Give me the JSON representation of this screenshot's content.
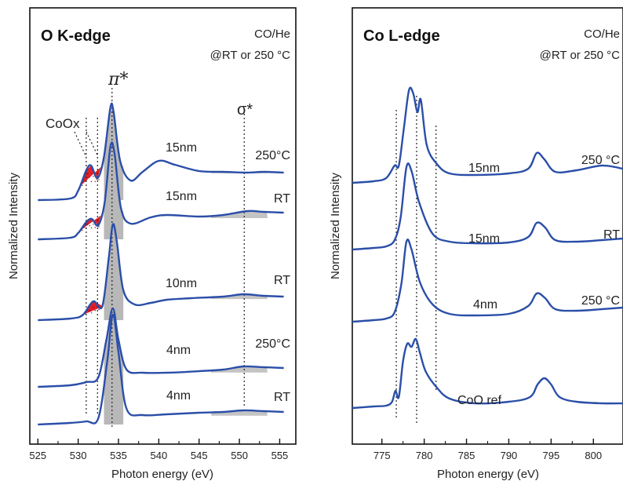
{
  "chart_data": [
    {
      "type": "line",
      "title": "O K-edge",
      "condition": [
        "CO/He",
        "@RT or 250 °C"
      ],
      "xlabel": "Photon energy (eV)",
      "ylabel": "Normalized Intensity",
      "xlim": [
        524,
        557
      ],
      "ticks": [
        525,
        530,
        535,
        540,
        545,
        550,
        555
      ],
      "peak_labels": {
        "pi": "π*",
        "sigma": "σ*",
        "coox": "CoOx"
      },
      "guides": [
        531,
        532.4,
        534.2,
        550.6
      ],
      "series": [
        {
          "size": "15nm",
          "temp": "250°C",
          "offset": 255,
          "scale": 1.0,
          "coo": 0.9,
          "bg": 0.4,
          "pts": [
            [
              525,
              0
            ],
            [
              529,
              2
            ],
            [
              530,
              12
            ],
            [
              531,
              38
            ],
            [
              531.6,
              44
            ],
            [
              532.4,
              28
            ],
            [
              533.2,
              55
            ],
            [
              534,
              118
            ],
            [
              534.4,
              112
            ],
            [
              535.2,
              50
            ],
            [
              536.5,
              25
            ],
            [
              538,
              36
            ],
            [
              540,
              50
            ],
            [
              542,
              45
            ],
            [
              545,
              37
            ],
            [
              548,
              36
            ],
            [
              551,
              35
            ],
            [
              553,
              36
            ],
            [
              555.5,
              35
            ]
          ]
        },
        {
          "size": "15nm",
          "temp": "RT",
          "offset": 305,
          "scale": 1.0,
          "coo": 0.6,
          "bg": 0.5,
          "pts": [
            [
              525,
              0
            ],
            [
              529,
              2
            ],
            [
              530,
              8
            ],
            [
              531,
              22
            ],
            [
              531.7,
              26
            ],
            [
              532.5,
              18
            ],
            [
              533.3,
              48
            ],
            [
              534,
              118
            ],
            [
              534.5,
              110
            ],
            [
              535.3,
              40
            ],
            [
              536.5,
              20
            ],
            [
              539,
              28
            ],
            [
              541,
              31
            ],
            [
              545,
              29
            ],
            [
              548,
              31
            ],
            [
              551,
              36
            ],
            [
              553,
              35
            ],
            [
              555.5,
              34
            ]
          ]
        },
        {
          "size": "10nm",
          "temp": "RT",
          "offset": 408,
          "scale": 1.0,
          "coo": 0.45,
          "bg": 0.4,
          "pts": [
            [
              525,
              0
            ],
            [
              529,
              2
            ],
            [
              530.5,
              6
            ],
            [
              531.5,
              20
            ],
            [
              532,
              24
            ],
            [
              533,
              18
            ],
            [
              533.8,
              80
            ],
            [
              534.3,
              122
            ],
            [
              534.8,
              100
            ],
            [
              535.6,
              38
            ],
            [
              537,
              20
            ],
            [
              539,
              22
            ],
            [
              541,
              26
            ],
            [
              544,
              28
            ],
            [
              548,
              30
            ],
            [
              550.5,
              33
            ],
            [
              553,
              31
            ],
            [
              555.5,
              30
            ]
          ]
        },
        {
          "size": "4nm",
          "temp": "250°C",
          "offset": 493,
          "scale": 1.0,
          "coo": 0.0,
          "bg": 0.45,
          "pts": [
            [
              525,
              0
            ],
            [
              529,
              2
            ],
            [
              531,
              6
            ],
            [
              532.5,
              12
            ],
            [
              533.5,
              60
            ],
            [
              534.3,
              100
            ],
            [
              535,
              60
            ],
            [
              536,
              22
            ],
            [
              538,
              18
            ],
            [
              541,
              18
            ],
            [
              545,
              20
            ],
            [
              548,
              22
            ],
            [
              550.5,
              26
            ],
            [
              553,
              25
            ],
            [
              555.5,
              24
            ]
          ]
        },
        {
          "size": "4nm",
          "temp": "RT",
          "offset": 541,
          "scale": 1.0,
          "coo": 0.0,
          "bg": 0.7,
          "pts": [
            [
              525,
              0
            ],
            [
              529,
              2
            ],
            [
              531,
              4
            ],
            [
              532.5,
              8
            ],
            [
              533.6,
              80
            ],
            [
              534.3,
              140
            ],
            [
              535,
              92
            ],
            [
              536,
              20
            ],
            [
              538,
              12
            ],
            [
              541,
              13
            ],
            [
              545,
              15
            ],
            [
              548,
              16
            ],
            [
              550.5,
              18
            ],
            [
              553,
              17
            ],
            [
              555.5,
              16
            ]
          ]
        }
      ]
    },
    {
      "type": "line",
      "title": "Co L-edge",
      "condition": [
        "CO/He",
        "@RT or 250 °C"
      ],
      "xlabel": "Photon energy (eV)",
      "ylabel": "Normalized Intensity",
      "xlim": [
        771.5,
        803.5
      ],
      "ticks": [
        775,
        780,
        785,
        790,
        795,
        800
      ],
      "guides": [
        776.7,
        779.1,
        781.4
      ],
      "series": [
        {
          "size": "15nm",
          "temp": "250 °C",
          "offset": 233,
          "pts": [
            [
              771.5,
              0
            ],
            [
              774,
              2
            ],
            [
              775.5,
              6
            ],
            [
              776.5,
              22
            ],
            [
              777,
              22
            ],
            [
              777.6,
              70
            ],
            [
              778.2,
              118
            ],
            [
              778.7,
              114
            ],
            [
              779.2,
              90
            ],
            [
              779.6,
              106
            ],
            [
              780.3,
              48
            ],
            [
              781.5,
              24
            ],
            [
              783,
              12
            ],
            [
              786,
              10
            ],
            [
              790,
              12
            ],
            [
              792.3,
              18
            ],
            [
              793.3,
              38
            ],
            [
              794.2,
              30
            ],
            [
              795.5,
              14
            ],
            [
              798,
              16
            ],
            [
              801,
              22
            ],
            [
              803.5,
              18
            ]
          ]
        },
        {
          "size": "15nm",
          "temp": "RT",
          "offset": 318,
          "pts": [
            [
              771.5,
              0
            ],
            [
              774,
              2
            ],
            [
              775.5,
              4
            ],
            [
              776.5,
              12
            ],
            [
              777.2,
              40
            ],
            [
              777.9,
              105
            ],
            [
              778.5,
              100
            ],
            [
              779.4,
              60
            ],
            [
              781,
              20
            ],
            [
              783,
              10
            ],
            [
              786,
              8
            ],
            [
              790,
              9
            ],
            [
              792.3,
              16
            ],
            [
              793.3,
              34
            ],
            [
              794.3,
              28
            ],
            [
              795.5,
              12
            ],
            [
              798,
              10
            ],
            [
              801,
              12
            ],
            [
              803.5,
              14
            ]
          ]
        },
        {
          "size": "4nm",
          "temp": "250 °C",
          "offset": 410,
          "pts": [
            [
              771.5,
              0
            ],
            [
              774,
              2
            ],
            [
              775.5,
              4
            ],
            [
              776.5,
              12
            ],
            [
              777.3,
              48
            ],
            [
              777.9,
              102
            ],
            [
              778.5,
              92
            ],
            [
              779.5,
              50
            ],
            [
              781,
              22
            ],
            [
              783,
              10
            ],
            [
              786,
              8
            ],
            [
              790,
              10
            ],
            [
              792.3,
              20
            ],
            [
              793.3,
              36
            ],
            [
              794.3,
              30
            ],
            [
              795.5,
              16
            ],
            [
              798,
              14
            ],
            [
              801,
              16
            ],
            [
              803.5,
              18
            ]
          ]
        },
        {
          "size": "CoO ref",
          "temp": "",
          "offset": 520,
          "pts": [
            [
              771.5,
              0
            ],
            [
              774,
              2
            ],
            [
              775.5,
              3
            ],
            [
              776.2,
              8
            ],
            [
              776.6,
              22
            ],
            [
              777,
              14
            ],
            [
              777.5,
              60
            ],
            [
              778,
              82
            ],
            [
              778.5,
              78
            ],
            [
              779,
              88
            ],
            [
              779.5,
              70
            ],
            [
              780.2,
              46
            ],
            [
              781.5,
              26
            ],
            [
              783,
              12
            ],
            [
              786,
              6
            ],
            [
              790,
              8
            ],
            [
              792.5,
              14
            ],
            [
              793.4,
              30
            ],
            [
              794.2,
              38
            ],
            [
              795,
              30
            ],
            [
              796,
              14
            ],
            [
              798,
              8
            ],
            [
              801,
              6
            ],
            [
              803.5,
              6
            ]
          ]
        }
      ]
    }
  ]
}
